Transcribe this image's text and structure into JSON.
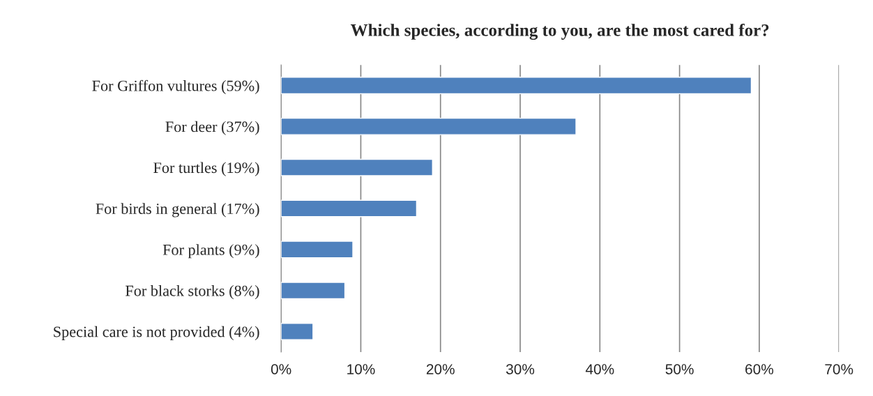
{
  "chart_data": {
    "type": "bar",
    "orientation": "horizontal",
    "title": "Which species, according to you, are the most cared for?",
    "categories": [
      "For Griffon vultures (59%)",
      "For deer (37%)",
      "For turtles (19%)",
      "For birds in general (17%)",
      "For plants (9%)",
      "For black storks (8%)",
      "Special care is not provided (4%)"
    ],
    "values": [
      59,
      37,
      19,
      17,
      9,
      8,
      4
    ],
    "color": "#4f81bd",
    "xlim": [
      0,
      70
    ],
    "xticks": [
      {
        "value": 0,
        "label": "0%"
      },
      {
        "value": 10,
        "label": "10%"
      },
      {
        "value": 20,
        "label": "20%"
      },
      {
        "value": 30,
        "label": "30%"
      },
      {
        "value": 40,
        "label": "40%"
      },
      {
        "value": 50,
        "label": "50%"
      },
      {
        "value": 60,
        "label": "60%"
      },
      {
        "value": 70,
        "label": "70%"
      }
    ],
    "grid": "x",
    "legend": false
  }
}
